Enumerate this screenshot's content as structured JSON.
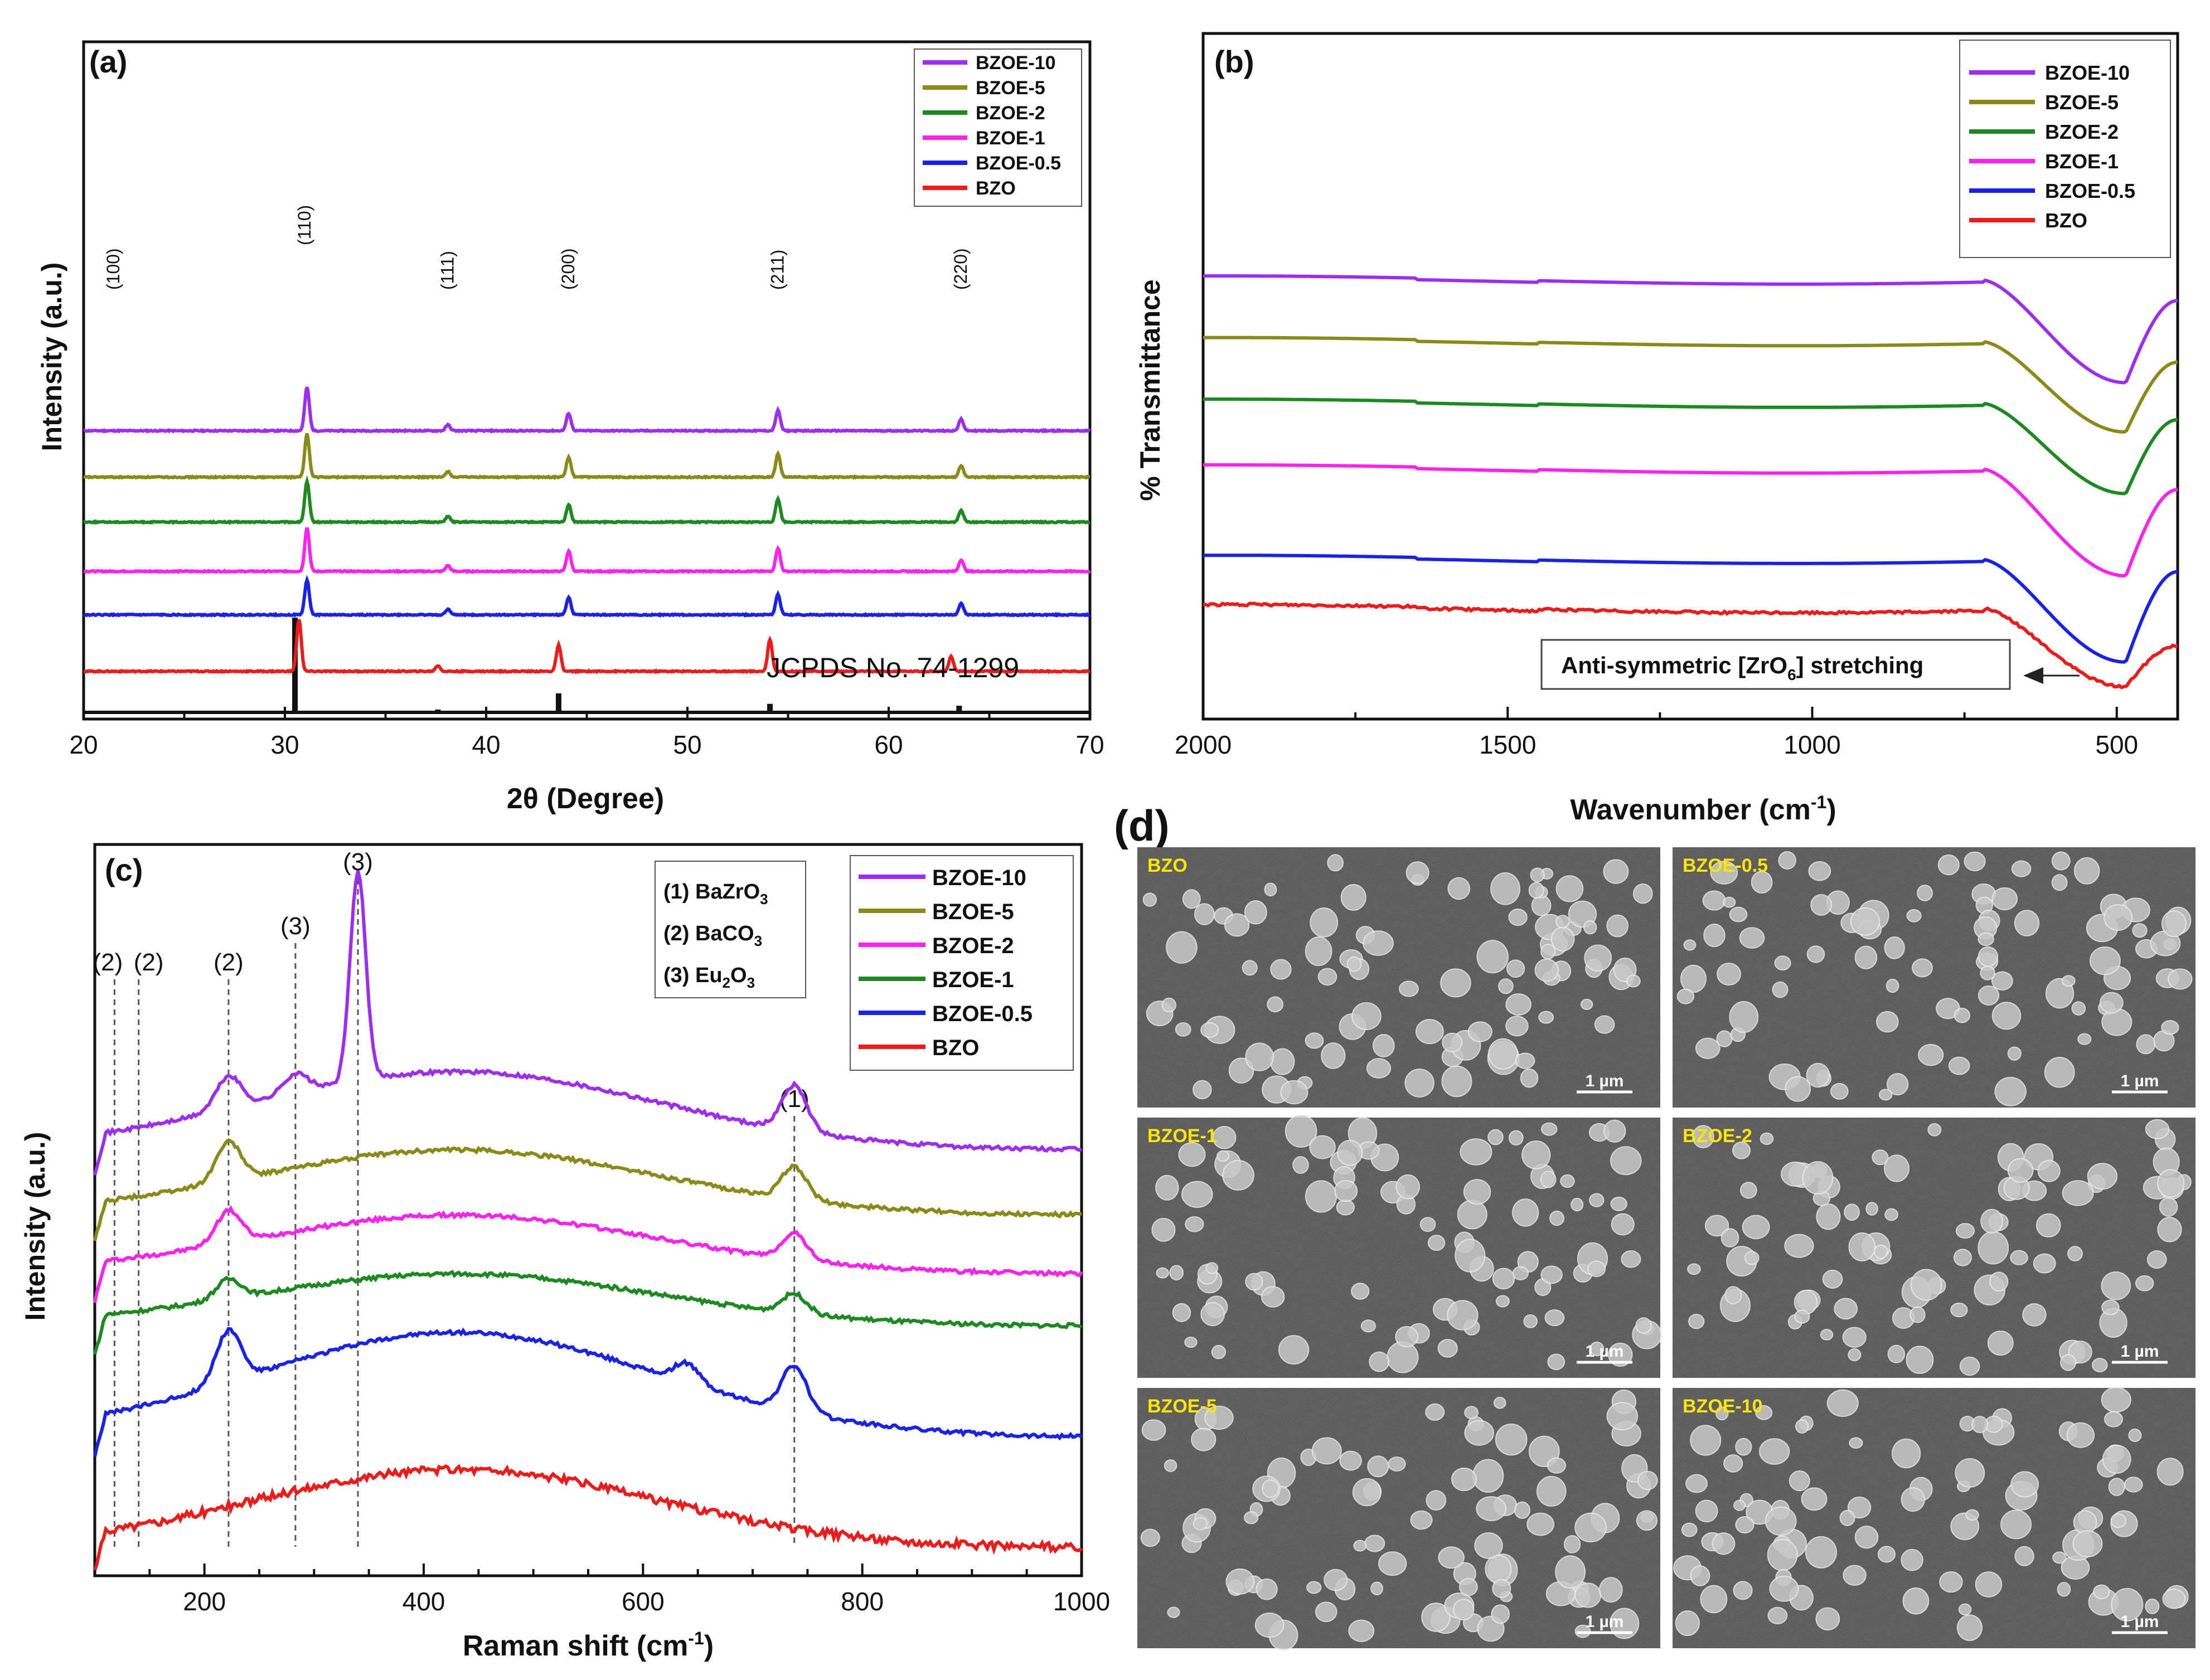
{
  "chart_data": [
    {
      "id": "a",
      "type": "line",
      "panel_label": "(a)",
      "xlabel_main": "2",
      "xlabel_theta": "θ",
      "xlabel_rest": " (Degree)",
      "ylabel": "Intensity (a.u.)",
      "xlim": [
        20,
        70
      ],
      "x_ticks": [
        "20",
        "30",
        "40",
        "50",
        "60",
        "70"
      ],
      "legend": [
        "BZOE-10",
        "BZOE-5",
        "BZOE-2",
        "BZOE-1",
        "BZOE-0.5",
        "BZO"
      ],
      "reference_label": "JCPDS No. 74-1299",
      "hkl": [
        {
          "x": 21.5,
          "label": "(100)"
        },
        {
          "x": 31.0,
          "label": "(110)"
        },
        {
          "x": 38.1,
          "label": "(111)"
        },
        {
          "x": 44.1,
          "label": "(200)"
        },
        {
          "x": 54.5,
          "label": "(211)"
        },
        {
          "x": 63.6,
          "label": "(220)"
        }
      ],
      "reference_peaks": [
        {
          "x": 30.5,
          "h": 1.0
        },
        {
          "x": 37.6,
          "h": 0.03
        },
        {
          "x": 43.6,
          "h": 0.2
        },
        {
          "x": 54.1,
          "h": 0.09
        },
        {
          "x": 63.5,
          "h": 0.07
        }
      ],
      "series": [
        {
          "name": "BZOE-10",
          "color": "#9d2ef1",
          "baseline": 0.86,
          "peaks": [
            [
              31.1,
              0.15
            ],
            [
              38.1,
              0.02
            ],
            [
              44.1,
              0.06
            ],
            [
              54.5,
              0.07
            ],
            [
              63.6,
              0.04
            ]
          ]
        },
        {
          "name": "BZOE-5",
          "color": "#8a8a18",
          "baseline": 0.7,
          "peaks": [
            [
              31.1,
              0.15
            ],
            [
              38.1,
              0.02
            ],
            [
              44.1,
              0.07
            ],
            [
              54.5,
              0.08
            ],
            [
              63.6,
              0.04
            ]
          ]
        },
        {
          "name": "BZOE-2",
          "color": "#1c8a20",
          "baseline": 0.545,
          "peaks": [
            [
              31.1,
              0.14
            ],
            [
              38.1,
              0.02
            ],
            [
              44.1,
              0.06
            ],
            [
              54.5,
              0.08
            ],
            [
              63.6,
              0.04
            ]
          ]
        },
        {
          "name": "BZOE-1",
          "color": "#ff22ee",
          "baseline": 0.375,
          "peaks": [
            [
              31.1,
              0.15
            ],
            [
              38.1,
              0.02
            ],
            [
              44.1,
              0.07
            ],
            [
              54.5,
              0.08
            ],
            [
              63.6,
              0.04
            ]
          ]
        },
        {
          "name": "BZOE-0.5",
          "color": "#1a22e8",
          "baseline": 0.225,
          "peaks": [
            [
              31.1,
              0.12
            ],
            [
              38.1,
              0.02
            ],
            [
              44.1,
              0.06
            ],
            [
              54.5,
              0.07
            ],
            [
              63.6,
              0.04
            ]
          ]
        },
        {
          "name": "BZO",
          "color": "#ee1b1b",
          "baseline": 0.03,
          "peaks": [
            [
              30.7,
              0.18
            ],
            [
              37.6,
              0.02
            ],
            [
              43.6,
              0.09
            ],
            [
              54.1,
              0.11
            ],
            [
              63.1,
              0.05
            ]
          ]
        }
      ]
    },
    {
      "id": "b",
      "type": "line",
      "panel_label": "(b)",
      "xlabel_main": "Wavenumber (cm",
      "xlabel_sup": "-1",
      "xlabel_close": ")",
      "ylabel": "% Transmittance",
      "xlim": [
        2000,
        400
      ],
      "x_ticks": [
        "2000",
        "1500",
        "1000",
        "500"
      ],
      "legend": [
        "BZOE-10",
        "BZOE-5",
        "BZOE-2",
        "BZOE-1",
        "BZOE-0.5",
        "BZO"
      ],
      "annotation_main": "Anti-symmetric [ZrO",
      "annotation_sub": "6",
      "annotation_rest": "] stretching",
      "series": [
        {
          "name": "BZOE-10",
          "color": "#9d2ef1",
          "level": 0.99,
          "dip": 0.74,
          "end": 0.94
        },
        {
          "name": "BZOE-5",
          "color": "#8a8a18",
          "level": 0.84,
          "dip": 0.62,
          "end": 0.79
        },
        {
          "name": "BZOE-2",
          "color": "#1c8a20",
          "level": 0.69,
          "dip": 0.47,
          "end": 0.65
        },
        {
          "name": "BZOE-1",
          "color": "#ff22ee",
          "level": 0.53,
          "dip": 0.27,
          "end": 0.48
        },
        {
          "name": "BZOE-0.5",
          "color": "#1a22e8",
          "level": 0.31,
          "dip": 0.06,
          "end": 0.28
        },
        {
          "name": "BZO",
          "color": "#ee1b1b",
          "level": 0.19,
          "dip": 0.0,
          "end": 0.1
        }
      ]
    },
    {
      "id": "c",
      "type": "line",
      "panel_label": "(c)",
      "xlabel_main": "Raman shift (cm",
      "xlabel_sup": "-1",
      "xlabel_close": ")",
      "ylabel": "Intensity (a.u.)",
      "xlim": [
        100,
        1000
      ],
      "x_ticks": [
        "200",
        "400",
        "600",
        "800",
        "1000"
      ],
      "legend": [
        "BZOE-10",
        "BZOE-5",
        "BZOE-2",
        "BZOE-1",
        "BZOE-0.5",
        "BZO"
      ],
      "phases": [
        {
          "main": "(1) BaZrO",
          "sub": "3"
        },
        {
          "main": "(2) BaCO",
          "sub": "3"
        },
        {
          "main": "(3) Eu",
          "sub": "2",
          "main2": "O",
          "sub2": "3"
        }
      ],
      "markers": [
        {
          "x": 118,
          "label": "(2)"
        },
        {
          "x": 140,
          "label": "(2)"
        },
        {
          "x": 222,
          "label": "(2)"
        },
        {
          "x": 283,
          "label": "(3)"
        },
        {
          "x": 340,
          "label": "(3)"
        },
        {
          "x": 738,
          "label": "(1)"
        }
      ],
      "series": [
        {
          "name": "BZOE-10",
          "color": "#9d2ef1",
          "base": 0.63,
          "bump": 0.12,
          "extra": [
            [
              222,
              0.05
            ],
            [
              283,
              0.03
            ],
            [
              340,
              0.32
            ],
            [
              738,
              0.07
            ]
          ]
        },
        {
          "name": "BZOE-5",
          "color": "#8a8a18",
          "base": 0.53,
          "bump": 0.1,
          "extra": [
            [
              222,
              0.06
            ],
            [
              738,
              0.05
            ]
          ]
        },
        {
          "name": "BZOE-2",
          "color": "#ff22ee",
          "base": 0.44,
          "bump": 0.09,
          "extra": [
            [
              222,
              0.05
            ],
            [
              738,
              0.04
            ]
          ]
        },
        {
          "name": "BZOE-1",
          "color": "#1c8a20",
          "base": 0.36,
          "bump": 0.08,
          "extra": [
            [
              222,
              0.03
            ],
            [
              738,
              0.03
            ]
          ]
        },
        {
          "name": "BZOE-0.5",
          "color": "#1a22e8",
          "base": 0.19,
          "bump": 0.16,
          "extra": [
            [
              222,
              0.08
            ],
            [
              640,
              0.03
            ],
            [
              738,
              0.07
            ]
          ]
        },
        {
          "name": "BZO",
          "color": "#ee1b1b",
          "base": 0.02,
          "bump": 0.12,
          "extra": []
        }
      ]
    }
  ],
  "panel_d": {
    "label": "(d)",
    "scale_bar": "1 µm",
    "tiles": [
      "BZO",
      "BZOE-0.5",
      "BZOE-1",
      "BZOE-2",
      "BZOE-5",
      "BZOE-10"
    ]
  }
}
